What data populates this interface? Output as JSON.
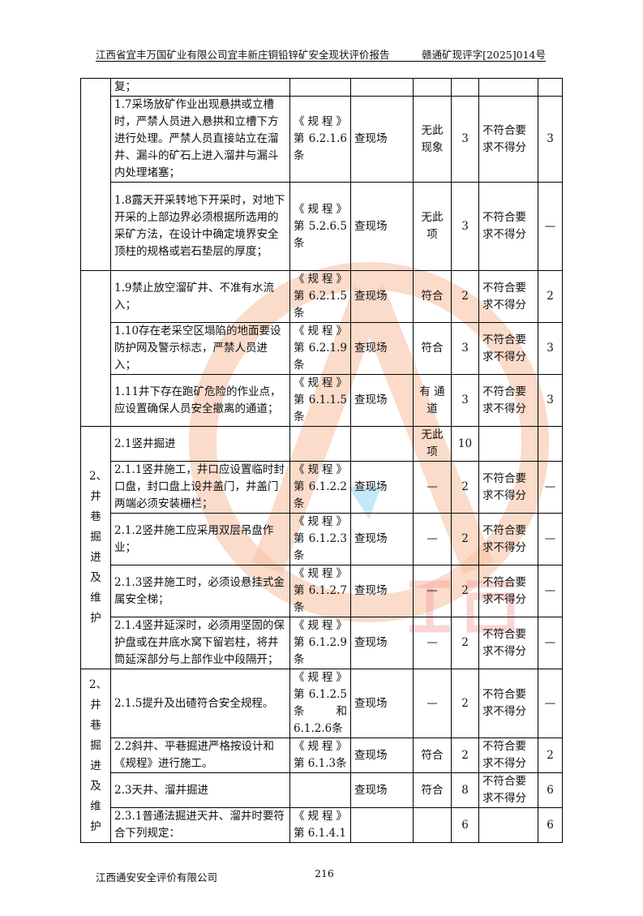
{
  "header": {
    "title": "江西省宜丰万国矿业有限公司宜丰新庄铜铅锌矿安全现状评价报告",
    "doc_no": "赣通矿现评字[2025]014号"
  },
  "watermark": {
    "text": "江西通安",
    "ring_text": "江西通安安全评价有限公司",
    "color": "#f5a07a"
  },
  "table": {
    "sections": [
      {
        "label": ""
      },
      {
        "label": ""
      },
      {
        "label": "2、井巷掘进及维护"
      },
      {
        "label": "2、井巷掘进及维护"
      }
    ],
    "rows": [
      {
        "item": "复；",
        "ref": "",
        "method": "",
        "result": "",
        "score": "",
        "rule": "",
        "got": ""
      },
      {
        "item": "1.7采场放矿作业出现悬拱或立槽时，严禁人员进入悬拱和立槽下方进行处理。严禁人员直接站立在溜井、漏斗的矿石上进入溜井与漏斗内处理堵塞；",
        "ref": "《规程》第 6.2.1.6条",
        "method": "查现场",
        "result": "无此现象",
        "score": "3",
        "rule": "不符合要求不得分",
        "got": "3"
      },
      {
        "item": "1.8露天开采转地下开采时，对地下开采的上部边界必须根据所选用的采矿方法，在设计中确定境界安全顶柱的规格或岩石垫层的厚度；",
        "ref": "《规程》第 5.2.6.5条",
        "method": "查现场",
        "result": "无此项",
        "score": "3",
        "rule": "不符合要求不得分",
        "got": "—"
      },
      {
        "item": "1.9禁止放空溜矿井、不准有水流入；",
        "ref": "《规程》第 6.2.1.5条",
        "method": "查现场",
        "result": "符合",
        "score": "2",
        "rule": "不符合要求不得分",
        "got": "2"
      },
      {
        "item": "1.10存在老采空区塌陷的地面要设防护网及警示标志，严禁人员进入；",
        "ref": "《规程》第 6.2.1.9条",
        "method": "查现场",
        "result": "符合",
        "score": "3",
        "rule": "不符合要求不得分",
        "got": "3"
      },
      {
        "item": "1.11井下存在跑矿危险的作业点，应设置确保人员安全撤离的通道；",
        "ref": "《规程》第 6.1.1.5条",
        "method": "查现场",
        "result": "有 通 道",
        "score": "3",
        "rule": "不符合要求不得分",
        "got": "3"
      },
      {
        "item": "2.1竖井掘进",
        "ref": "",
        "method": "",
        "result": "无此项",
        "score": "10",
        "rule": "",
        "got": ""
      },
      {
        "item": "2.1.1竖井施工，井口应设置临时封口盘，封口盘上设井盖门，井盖门两端必须安装栅栏；",
        "ref": "《规程》第 6.1.2.2条",
        "method": "查现场",
        "result": "—",
        "score": "2",
        "rule": "不符合要求不得分",
        "got": "—"
      },
      {
        "item": "2.1.2竖井施工应采用双层吊盘作业；",
        "ref": "《规程》第 6.1.2.3条",
        "method": "查现场",
        "result": "—",
        "score": "2",
        "rule": "不符合要求不得分",
        "got": "—"
      },
      {
        "item": "2.1.3竖井施工时，必须设悬挂式金属安全梯；",
        "ref": "《规程》第 6.1.2.7条",
        "method": "查现场",
        "result": "—",
        "score": "2",
        "rule": "不符合要求不得分",
        "got": "—"
      },
      {
        "item": "2.1.4竖井延深时，必须用坚固的保护盘或在井底水窝下留岩柱，将井筒延深部分与上部作业中段隔开；",
        "ref": "《规程》第 6.1.2.9条",
        "method": "查现场",
        "result": "—",
        "score": "2",
        "rule": "不符合要求不得分",
        "got": "—"
      },
      {
        "item": "2.1.5提升及出碴符合安全规程。",
        "ref": "《规程》第 6.1.2.5条 和 6.1.2.6条",
        "method": "查现场",
        "result": "—",
        "score": "2",
        "rule": "不符合要求不得分",
        "got": "—"
      },
      {
        "item": "2.2斜井、平巷掘进严格按设计和《规程》进行施工。",
        "ref": "《规程》第 6.1.3条",
        "method": "查现场",
        "result": "符合",
        "score": "2",
        "rule": "不符合要求不得分",
        "got": "2"
      },
      {
        "item": "2.3天井、溜井掘进",
        "ref": "",
        "method": "查现场",
        "result": "符合",
        "score": "8",
        "rule": "不符合要求不得分",
        "got": "6"
      },
      {
        "item": "2.3.1普通法掘进天井、溜井时要符合下列规定：",
        "ref": "《规程》第 6.1.4.1",
        "method": "",
        "result": "",
        "score": "6",
        "rule": "",
        "got": "6"
      }
    ]
  },
  "footer": {
    "company": "江西通安安全评价有限公司",
    "page": "216"
  }
}
